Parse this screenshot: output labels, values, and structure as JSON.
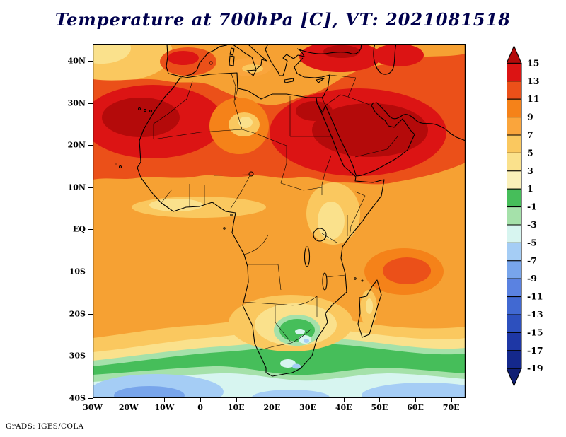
{
  "title": "Temperature at 700hPa [C], VT: 2021081518",
  "credit": "GrADS: IGES/COLA",
  "chart_data": {
    "type": "heatmap",
    "title": "Temperature at 700hPa [C], VT: 2021081518",
    "variable": "Temperature",
    "level": "700hPa",
    "units": "C",
    "valid_time": "2021081518",
    "region": "Africa, Middle East and surrounding oceans",
    "grid": false,
    "map_outlines": true,
    "x_axis": {
      "ticks": [
        "30W",
        "20W",
        "10W",
        "0",
        "10E",
        "20E",
        "30E",
        "40E",
        "50E",
        "60E",
        "70E"
      ],
      "range_deg_lon": [
        -30,
        74
      ]
    },
    "y_axis": {
      "ticks": [
        "40N",
        "30N",
        "20N",
        "10N",
        "EQ",
        "10S",
        "20S",
        "30S",
        "40S"
      ],
      "range_deg_lat": [
        -40,
        44
      ]
    },
    "colorbar": {
      "position": "right",
      "levels": [
        15,
        13,
        11,
        9,
        7,
        5,
        3,
        1,
        -1,
        -3,
        -5,
        -7,
        -9,
        -11,
        -13,
        -15,
        -17,
        -19
      ],
      "colors": [
        "#b40a0a",
        "#dc1414",
        "#eb5019",
        "#f58219",
        "#faa53c",
        "#fac85f",
        "#fae18c",
        "#faf0b9",
        "#46be5a",
        "#a5e1aa",
        "#d7f5f0",
        "#a5cdf5",
        "#78a5eb",
        "#5a82e1",
        "#4169d2",
        "#2d50be",
        "#1e37a5",
        "#14288c",
        "#0f1e73"
      ]
    },
    "features": [
      {
        "region": "Western Sahara / Morocco and adjacent Atlantic (~17N-33N)",
        "approx_temp_c": "13 to above 15"
      },
      {
        "region": "Egypt, Red Sea and Arabian Peninsula (~12N-32N)",
        "approx_temp_c": "13 to above 15"
      },
      {
        "region": "Most of North Africa and the Middle East",
        "approx_temp_c": "11 to 13"
      },
      {
        "region": "Equatorial Africa and tropical oceans",
        "approx_temp_c": "7 to 11"
      },
      {
        "region": "Gulf of Guinea coast and Ethiopian highlands",
        "approx_temp_c": "3 to 7"
      },
      {
        "region": "Southern African plateau (Botswana / northern South Africa pocket)",
        "approx_temp_c": "-1 to 1 (green) within a 1-5 band"
      },
      {
        "region": "Zonal green band near 28S-35S",
        "approx_temp_c": "-1 to 1"
      },
      {
        "region": "Southern Ocean near 40S",
        "approx_temp_c": "-5 to -9 (light blue)"
      }
    ]
  }
}
